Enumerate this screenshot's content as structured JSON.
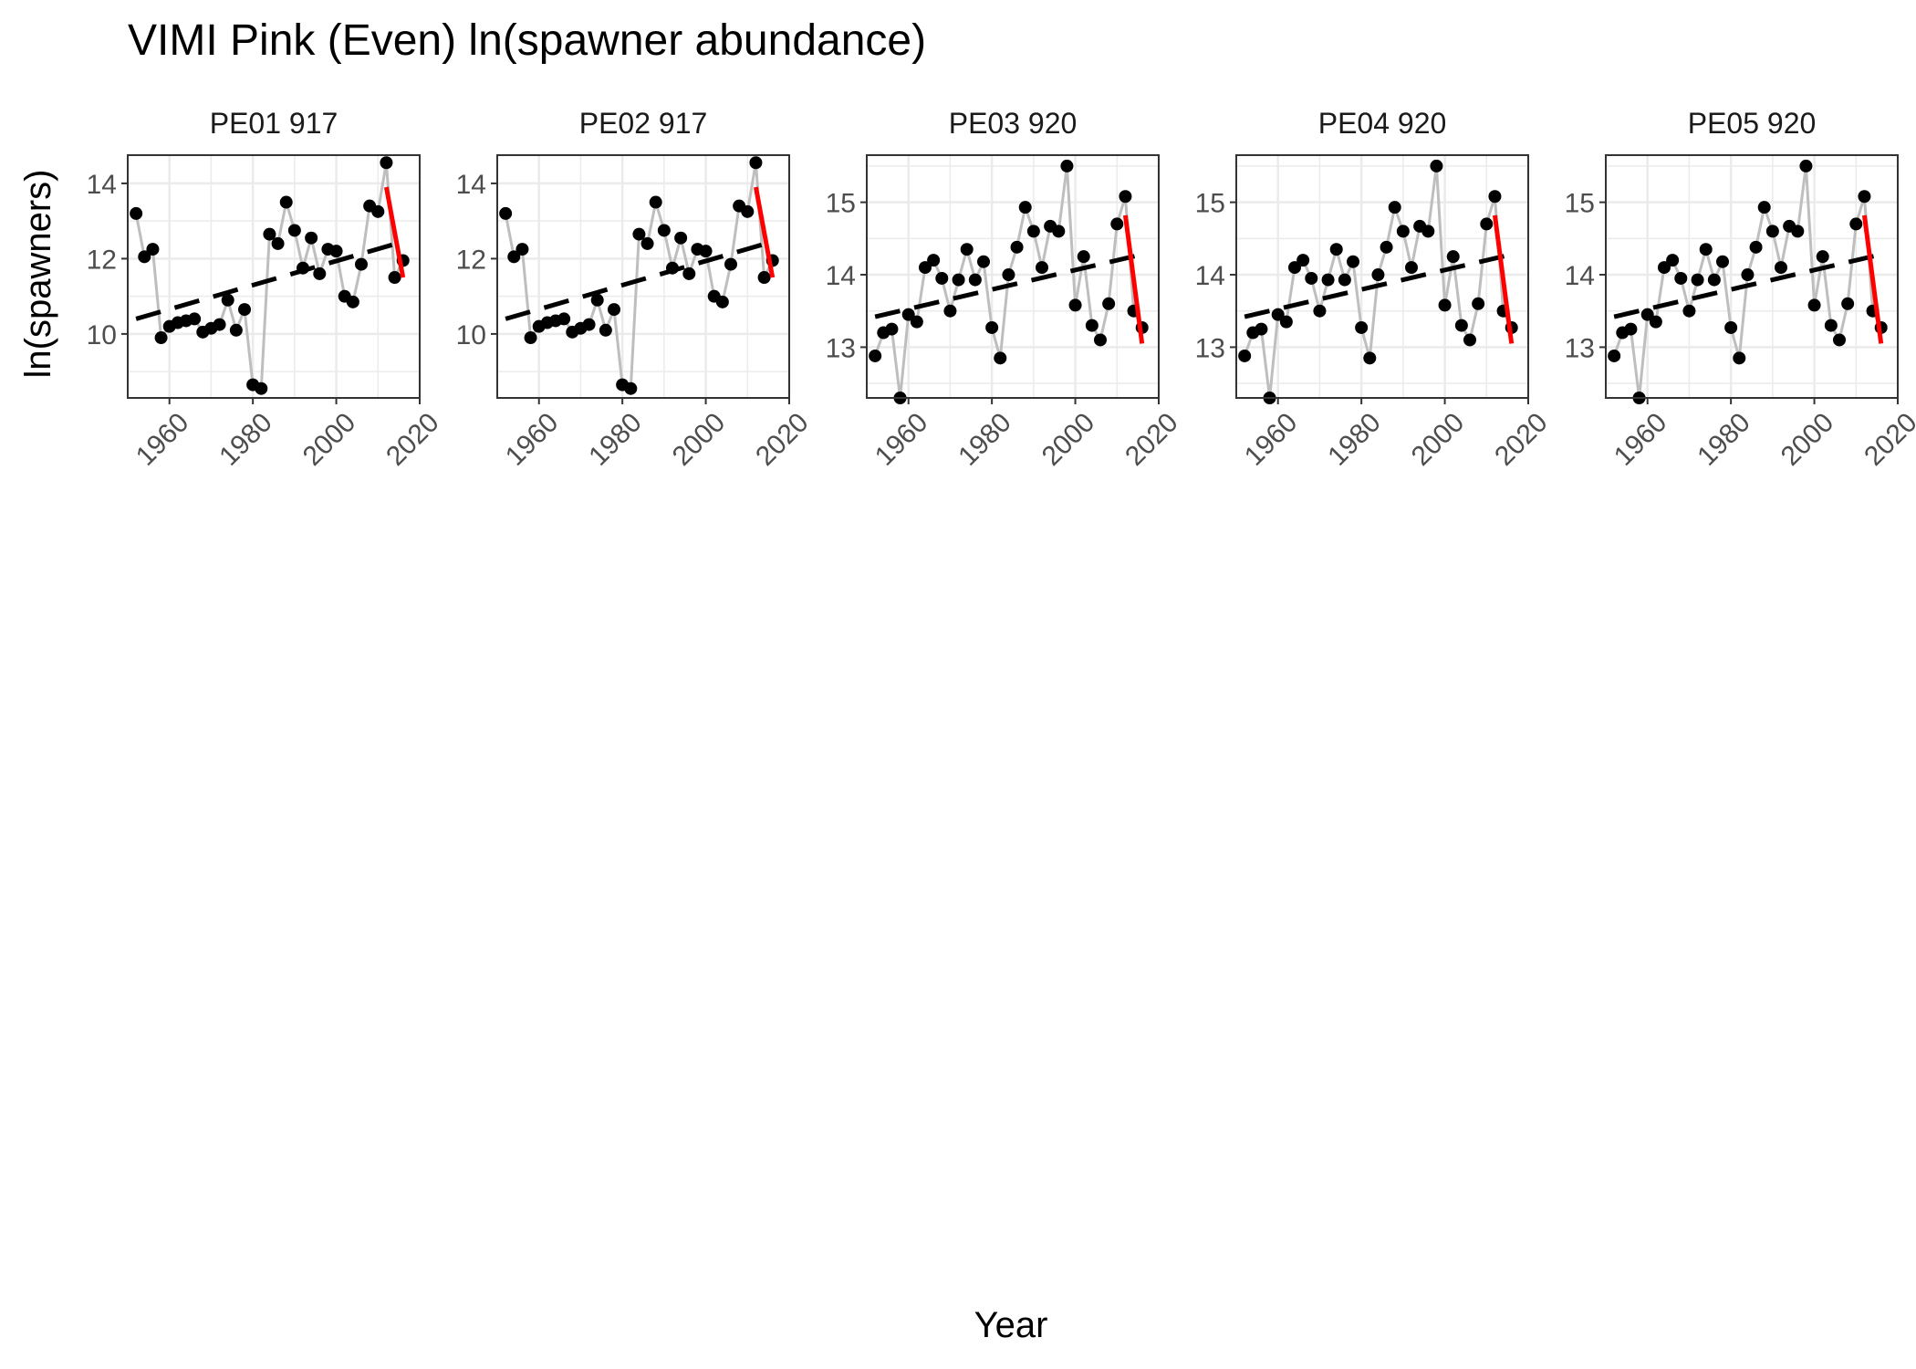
{
  "chart_data": {
    "type": "line",
    "title": "VIMI Pink (Even) ln(spawner abundance)",
    "xlabel": "Year",
    "ylabel": "ln(spawners)",
    "xlim": [
      1950,
      2020
    ],
    "xticks": [
      1960,
      1980,
      2000,
      2020
    ],
    "grid": true,
    "legend": "none",
    "colors": {
      "points": "#000000",
      "connector": "#bebebe",
      "trend_long": "#000000",
      "trend_recent": "#ff0000",
      "panel_border": "#333333",
      "grid": "#ebebeb"
    },
    "panels": [
      {
        "label": "PE01 917",
        "ylim": [
          8.3,
          14.75
        ],
        "yticks": [
          10,
          12,
          14
        ],
        "x": [
          1952,
          1954,
          1956,
          1958,
          1960,
          1962,
          1964,
          1966,
          1968,
          1970,
          1972,
          1974,
          1976,
          1978,
          1980,
          1982,
          1984,
          1986,
          1988,
          1990,
          1992,
          1994,
          1996,
          1998,
          2000,
          2002,
          2004,
          2006,
          2008,
          2010,
          2012,
          2014,
          2016
        ],
        "y": [
          13.2,
          12.05,
          12.25,
          9.9,
          10.2,
          10.3,
          10.35,
          10.4,
          10.05,
          10.15,
          10.25,
          10.9,
          10.1,
          10.65,
          8.65,
          8.55,
          12.65,
          12.4,
          13.5,
          12.75,
          11.75,
          12.55,
          11.6,
          12.25,
          12.2,
          11.0,
          10.85,
          11.85,
          13.4,
          13.25,
          14.55,
          11.5,
          11.95
        ],
        "trend_long": {
          "x": [
            1952,
            2016
          ],
          "y": [
            10.4,
            12.45
          ]
        },
        "trend_recent": {
          "x": [
            2012,
            2016
          ],
          "y": [
            13.9,
            11.5
          ]
        }
      },
      {
        "label": "PE02 917",
        "ylim": [
          8.3,
          14.75
        ],
        "yticks": [
          10,
          12,
          14
        ],
        "x": [
          1952,
          1954,
          1956,
          1958,
          1960,
          1962,
          1964,
          1966,
          1968,
          1970,
          1972,
          1974,
          1976,
          1978,
          1980,
          1982,
          1984,
          1986,
          1988,
          1990,
          1992,
          1994,
          1996,
          1998,
          2000,
          2002,
          2004,
          2006,
          2008,
          2010,
          2012,
          2014,
          2016
        ],
        "y": [
          13.2,
          12.05,
          12.25,
          9.9,
          10.2,
          10.3,
          10.35,
          10.4,
          10.05,
          10.15,
          10.25,
          10.9,
          10.1,
          10.65,
          8.65,
          8.55,
          12.65,
          12.4,
          13.5,
          12.75,
          11.75,
          12.55,
          11.6,
          12.25,
          12.2,
          11.0,
          10.85,
          11.85,
          13.4,
          13.25,
          14.55,
          11.5,
          11.95
        ],
        "trend_long": {
          "x": [
            1952,
            2016
          ],
          "y": [
            10.4,
            12.45
          ]
        },
        "trend_recent": {
          "x": [
            2012,
            2016
          ],
          "y": [
            13.9,
            11.5
          ]
        }
      },
      {
        "label": "PE03 920",
        "ylim": [
          12.3,
          15.65
        ],
        "yticks": [
          13,
          14,
          15
        ],
        "x": [
          1952,
          1954,
          1956,
          1958,
          1960,
          1962,
          1964,
          1966,
          1968,
          1970,
          1972,
          1974,
          1976,
          1978,
          1980,
          1982,
          1984,
          1986,
          1988,
          1990,
          1992,
          1994,
          1996,
          1998,
          2000,
          2002,
          2004,
          2006,
          2008,
          2010,
          2012,
          2014,
          2016
        ],
        "y": [
          12.88,
          13.2,
          13.25,
          12.3,
          13.45,
          13.35,
          14.1,
          14.2,
          13.95,
          13.5,
          13.93,
          14.35,
          13.93,
          14.18,
          13.27,
          12.85,
          14.0,
          14.38,
          14.93,
          14.6,
          14.1,
          14.67,
          14.6,
          15.5,
          13.58,
          14.25,
          13.3,
          13.1,
          13.6,
          14.7,
          15.08,
          13.5,
          13.27
        ],
        "trend_long": {
          "x": [
            1952,
            2016
          ],
          "y": [
            13.42,
            14.28
          ]
        },
        "trend_recent": {
          "x": [
            2012,
            2016
          ],
          "y": [
            14.82,
            13.05
          ]
        }
      },
      {
        "label": "PE04 920",
        "ylim": [
          12.3,
          15.65
        ],
        "yticks": [
          13,
          14,
          15
        ],
        "x": [
          1952,
          1954,
          1956,
          1958,
          1960,
          1962,
          1964,
          1966,
          1968,
          1970,
          1972,
          1974,
          1976,
          1978,
          1980,
          1982,
          1984,
          1986,
          1988,
          1990,
          1992,
          1994,
          1996,
          1998,
          2000,
          2002,
          2004,
          2006,
          2008,
          2010,
          2012,
          2014,
          2016
        ],
        "y": [
          12.88,
          13.2,
          13.25,
          12.3,
          13.45,
          13.35,
          14.1,
          14.2,
          13.95,
          13.5,
          13.93,
          14.35,
          13.93,
          14.18,
          13.27,
          12.85,
          14.0,
          14.38,
          14.93,
          14.6,
          14.1,
          14.67,
          14.6,
          15.5,
          13.58,
          14.25,
          13.3,
          13.1,
          13.6,
          14.7,
          15.08,
          13.5,
          13.27
        ],
        "trend_long": {
          "x": [
            1952,
            2016
          ],
          "y": [
            13.42,
            14.28
          ]
        },
        "trend_recent": {
          "x": [
            2012,
            2016
          ],
          "y": [
            14.82,
            13.05
          ]
        }
      },
      {
        "label": "PE05 920",
        "ylim": [
          12.3,
          15.65
        ],
        "yticks": [
          13,
          14,
          15
        ],
        "x": [
          1952,
          1954,
          1956,
          1958,
          1960,
          1962,
          1964,
          1966,
          1968,
          1970,
          1972,
          1974,
          1976,
          1978,
          1980,
          1982,
          1984,
          1986,
          1988,
          1990,
          1992,
          1994,
          1996,
          1998,
          2000,
          2002,
          2004,
          2006,
          2008,
          2010,
          2012,
          2014,
          2016
        ],
        "y": [
          12.88,
          13.2,
          13.25,
          12.3,
          13.45,
          13.35,
          14.1,
          14.2,
          13.95,
          13.5,
          13.93,
          14.35,
          13.93,
          14.18,
          13.27,
          12.85,
          14.0,
          14.38,
          14.93,
          14.6,
          14.1,
          14.67,
          14.6,
          15.5,
          13.58,
          14.25,
          13.3,
          13.1,
          13.6,
          14.7,
          15.08,
          13.5,
          13.27
        ],
        "trend_long": {
          "x": [
            1952,
            2016
          ],
          "y": [
            13.42,
            14.28
          ]
        },
        "trend_recent": {
          "x": [
            2012,
            2016
          ],
          "y": [
            14.82,
            13.05
          ]
        }
      }
    ]
  }
}
